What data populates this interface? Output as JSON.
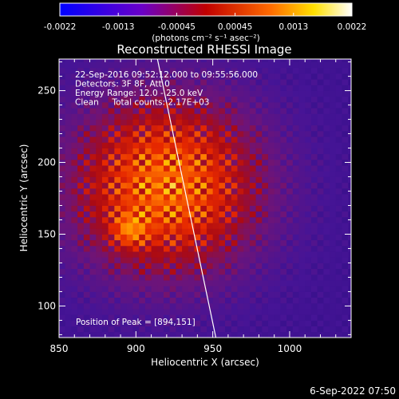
{
  "chart_data": {
    "type": "heatmap",
    "title": "Reconstructed RHESSI Image",
    "xlabel": "Heliocentric X (arcsec)",
    "ylabel": "Heliocentric Y (arcsec)",
    "xlim": [
      850,
      1040
    ],
    "ylim": [
      78,
      272
    ],
    "x_ticks": [
      850,
      900,
      950,
      1000
    ],
    "y_ticks": [
      100,
      150,
      200,
      250
    ],
    "info_lines": [
      "22-Sep-2016 09:52:12.000 to 09:55:56.000",
      "Detectors: 3F 8F, Att 0",
      "Energy Range: 12.0 - 25.0 keV",
      "Clean     Total counts: 2.17E+03"
    ],
    "peak_label": "Position of Peak = [894,151]",
    "peak": {
      "x": 894,
      "y": 151
    },
    "colorbar": {
      "tick_labels": [
        "-0.0022",
        "-0.0013",
        "-0.00045",
        "0.00045",
        "0.0013",
        "0.0022"
      ],
      "units_line": "(photons cm⁻² s⁻¹ asec⁻²)",
      "range": [
        -0.0022,
        0.0022
      ],
      "colors": [
        "#0000ff",
        "#6a00c8",
        "#c00000",
        "#ff6a00",
        "#ffe000",
        "#ffffff"
      ]
    },
    "limb": {
      "x_top": 914,
      "x_bottom": 952,
      "color": "#ffffff"
    },
    "source_center": {
      "x": 918,
      "y": 182
    }
  },
  "footer": {
    "timestamp": "6-Sep-2022 07:50"
  }
}
